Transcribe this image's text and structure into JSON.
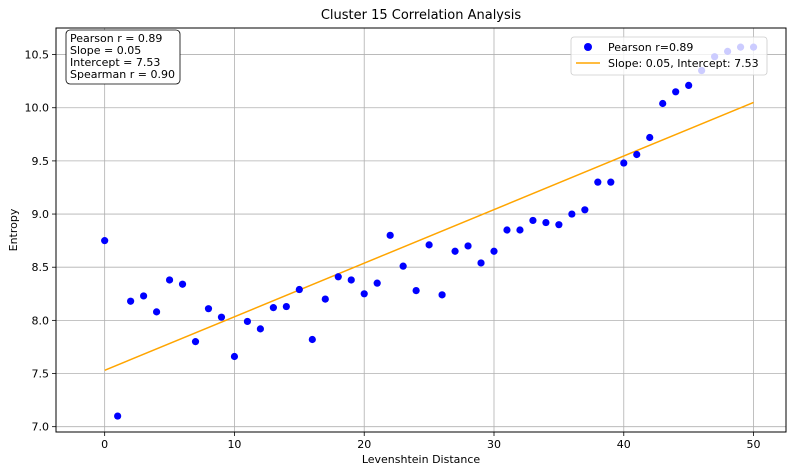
{
  "chart_data": {
    "type": "scatter",
    "title": "Cluster 15 Correlation Analysis",
    "xlabel": "Levenshtein Distance",
    "ylabel": "Entropy",
    "xlim": [
      -3.75,
      52.5
    ],
    "ylim": [
      6.95,
      10.75
    ],
    "xticks": [
      0,
      10,
      20,
      30,
      40,
      50
    ],
    "yticks": [
      7.0,
      7.5,
      8.0,
      8.5,
      9.0,
      9.5,
      10.0,
      10.5
    ],
    "ytick_labels": [
      "7.0",
      "7.5",
      "8.0",
      "8.5",
      "9.0",
      "9.5",
      "10.0",
      "10.5"
    ],
    "grid": true,
    "legend_position": "top-right",
    "series": [
      {
        "name": "Pearson r=0.89",
        "kind": "scatter",
        "color": "#0000ff",
        "x": [
          0,
          1,
          2,
          3,
          4,
          5,
          6,
          7,
          8,
          9,
          10,
          11,
          12,
          13,
          14,
          15,
          16,
          17,
          18,
          19,
          20,
          21,
          22,
          23,
          24,
          25,
          26,
          27,
          28,
          29,
          30,
          31,
          32,
          33,
          34,
          35,
          36,
          37,
          38,
          39,
          40,
          41,
          42,
          43,
          44,
          45,
          46,
          47,
          48,
          49,
          50
        ],
        "y": [
          8.75,
          7.1,
          8.18,
          8.23,
          8.08,
          8.38,
          8.34,
          7.8,
          8.11,
          8.03,
          7.66,
          7.99,
          7.92,
          8.12,
          8.13,
          8.29,
          7.82,
          8.2,
          8.41,
          8.38,
          8.25,
          8.35,
          8.8,
          8.51,
          8.28,
          8.71,
          8.24,
          8.65,
          8.7,
          8.54,
          8.65,
          8.85,
          8.85,
          8.94,
          8.92,
          8.9,
          9.0,
          9.04,
          9.3,
          9.3,
          9.48,
          9.56,
          9.72,
          10.04,
          10.15,
          10.21,
          10.35,
          10.48,
          10.53,
          10.57,
          10.57
        ]
      },
      {
        "name": "Slope: 0.05, Intercept: 7.53",
        "kind": "line",
        "color": "#ffa500",
        "x": [
          0,
          50
        ],
        "y": [
          7.53,
          10.05
        ]
      }
    ],
    "stats_box": [
      "Pearson r = 0.89",
      "Slope = 0.05",
      "Intercept = 7.53",
      "Spearman r = 0.90"
    ]
  }
}
